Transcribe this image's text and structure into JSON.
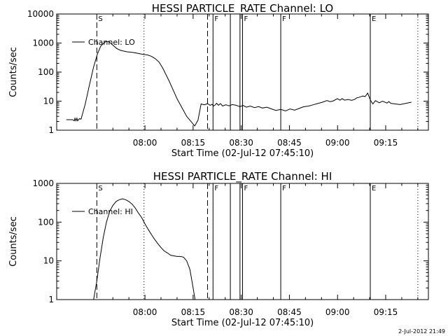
{
  "chart_data": [
    {
      "type": "line",
      "title": "HESSI PARTICLE_RATE Channel: LO",
      "xlabel": "Start Time (02-Jul-12 07:45:10)",
      "ylabel": "Counts/sec",
      "yscale": "log",
      "ylim": [
        1,
        10000
      ],
      "xlim_minutes": [
        -12.5,
        103.3
      ],
      "xticks": [
        "08:00",
        "08:15",
        "08:30",
        "08:45",
        "09:00",
        "09:15"
      ],
      "xtick_minutes": [
        15,
        30,
        45,
        60,
        75,
        90
      ],
      "yticks": [
        "1",
        "10",
        "100",
        "1000",
        "10000"
      ],
      "ytick_values": [
        1,
        10,
        100,
        1000,
        10000
      ],
      "legend": {
        "label": "Channel: LO",
        "position": "top-left"
      },
      "series": [
        {
          "name": "Channel: LO",
          "x": [
            -9.5,
            -7.6,
            -7.0,
            -6.8,
            -6.5,
            -6.2,
            -6.0,
            -5.7,
            -5.4,
            -4.9,
            -3.6,
            -2.2,
            -1.0,
            0.2,
            1.2,
            2.2,
            3.0,
            3.8,
            5.0,
            6.2,
            7.4,
            9.4,
            11.0,
            12.4,
            13.8,
            15.0,
            15.8,
            17.0,
            18.2,
            19.4,
            20.5,
            22.5,
            25.0,
            28.0,
            30.5,
            31.5,
            32.5,
            33.5,
            34.5,
            35.3,
            35.9,
            36.4,
            36.9,
            37.3,
            37.9,
            38.5,
            39.2,
            40.2,
            41.2,
            42.2,
            43.4,
            44.6,
            45.6,
            46.6,
            47.8,
            49.1,
            50.4,
            51.6,
            53.0,
            54.4,
            55.8,
            57.3,
            58.8,
            60.2,
            61.6,
            63.0,
            64.4,
            66.0,
            67.4,
            68.8,
            70.3,
            71.7,
            72.7,
            73.7,
            74.9,
            75.8,
            76.4,
            77.2,
            78.3,
            79.4,
            80.4,
            81.0,
            81.6,
            82.2,
            82.9,
            83.6,
            84.4,
            85.2,
            86.0,
            86.8,
            88.0,
            89.0,
            90.4,
            91.0,
            91.6,
            94.5,
            98.0
          ],
          "y": [
            2.3,
            2.3,
            2.1,
            2.6,
            2.1,
            2.6,
            2.1,
            2.3,
            2.5,
            2.4,
            8,
            40,
            150,
            420,
            780,
            1000,
            1150,
            1100,
            850,
            650,
            560,
            500,
            480,
            450,
            420,
            400,
            390,
            350,
            290,
            220,
            140,
            50,
            12,
            3,
            1.4,
            2.2,
            8,
            7.5,
            8.2,
            7.2,
            7.8,
            6.8,
            7.4,
            8.5,
            7.2,
            8.3,
            6.8,
            7.5,
            6.9,
            7.6,
            7.2,
            6.5,
            7.1,
            6.2,
            6.8,
            6.0,
            6.5,
            5.8,
            6.2,
            5.4,
            4.8,
            5.2,
            4.6,
            5.4,
            4.9,
            5.6,
            6.4,
            6.8,
            7.5,
            8.3,
            9.2,
            10.5,
            9.6,
            10.2,
            12.2,
            10.8,
            12.2,
            10.8,
            11.4,
            10.6,
            11.6,
            13.0,
            13.4,
            14.2,
            15.0,
            14.4,
            19.0,
            11.0,
            8.0,
            10.4,
            8.8,
            10.0,
            8.6,
            9.6,
            8.4,
            7.6,
            9.2
          ]
        }
      ]
    },
    {
      "type": "line",
      "title": "HESSI PARTICLE_RATE Channel: HI",
      "xlabel": "Start Time (02-Jul-12 07:45:10)",
      "ylabel": "Counts/sec",
      "yscale": "log",
      "ylim": [
        1,
        1000
      ],
      "xlim_minutes": [
        -12.5,
        103.3
      ],
      "xticks": [
        "08:00",
        "08:15",
        "08:30",
        "08:45",
        "09:00",
        "09:15"
      ],
      "xtick_minutes": [
        15,
        30,
        45,
        60,
        75,
        90
      ],
      "yticks": [
        "1",
        "10",
        "100",
        "1000"
      ],
      "ytick_values": [
        1,
        10,
        100,
        1000
      ],
      "legend": {
        "label": "Channel: HI",
        "position": "top-left"
      },
      "series": [
        {
          "name": "Channel: HI",
          "x": [
            -1.0,
            0.0,
            1.0,
            2.0,
            3.0,
            4.0,
            5.0,
            6.0,
            7.0,
            8.0,
            9.0,
            10.0,
            11.0,
            12.0,
            13.0,
            14.0,
            15.0,
            16.0,
            17.0,
            18.0,
            19.0,
            20.0,
            21.0,
            22.0,
            23.0,
            24.0,
            25.0,
            26.0,
            27.0,
            28.0,
            29.0,
            30.0,
            30.6
          ],
          "y": [
            1,
            3,
            12,
            40,
            100,
            190,
            270,
            340,
            380,
            400,
            380,
            340,
            290,
            230,
            170,
            130,
            90,
            65,
            48,
            36,
            28,
            22,
            18,
            16,
            14,
            13.5,
            13,
            13,
            12.5,
            10,
            6,
            2,
            1
          ]
        }
      ]
    }
  ],
  "flags_lo": [
    {
      "label": "S",
      "minutes": 0,
      "style": "dashed"
    },
    {
      "label": "",
      "minutes": 14.7,
      "style": "dotted"
    },
    {
      "label": "",
      "minutes": 34.5,
      "style": "dashed"
    },
    {
      "label": "F",
      "minutes": 36.2,
      "style": "solid"
    },
    {
      "label": "",
      "minutes": 41.6,
      "style": "solid"
    },
    {
      "label": "",
      "minutes": 44.6,
      "style": "solid"
    },
    {
      "label": "F",
      "minutes": 45.4,
      "style": "solid"
    },
    {
      "label": "F",
      "minutes": 57.3,
      "style": "solid"
    },
    {
      "label": "E",
      "minutes": 85.2,
      "style": "solid"
    },
    {
      "label": "",
      "minutes": 100.0,
      "style": "dotted"
    }
  ],
  "flags_hi": [
    {
      "label": "S",
      "minutes": 0,
      "style": "dashed"
    },
    {
      "label": "",
      "minutes": 14.7,
      "style": "dotted"
    },
    {
      "label": "",
      "minutes": 34.5,
      "style": "dashed"
    },
    {
      "label": "F",
      "minutes": 36.2,
      "style": "solid"
    },
    {
      "label": "",
      "minutes": 41.6,
      "style": "solid"
    },
    {
      "label": "",
      "minutes": 44.6,
      "style": "solid"
    },
    {
      "label": "F",
      "minutes": 45.4,
      "style": "solid"
    },
    {
      "label": "F",
      "minutes": 57.3,
      "style": "solid"
    },
    {
      "label": "E",
      "minutes": 85.2,
      "style": "solid"
    },
    {
      "label": "",
      "minutes": 100.0,
      "style": "dotted"
    }
  ],
  "timestamp": "2-Jul-2012 21:49"
}
